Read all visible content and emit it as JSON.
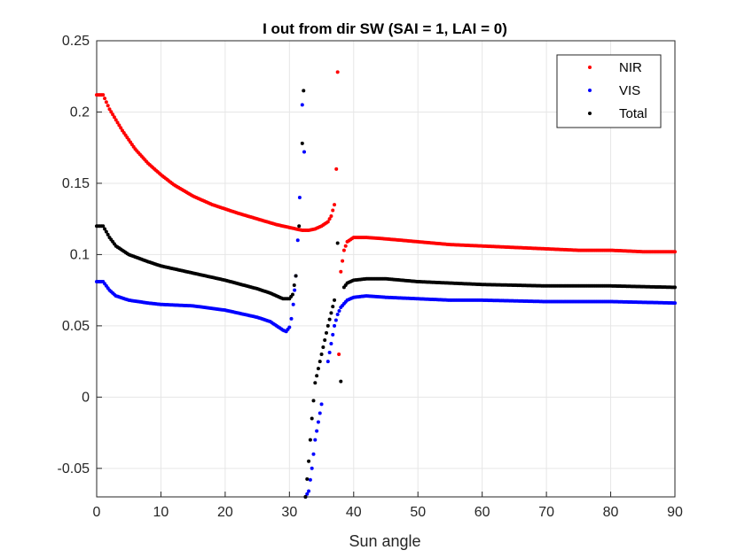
{
  "chart_data": {
    "type": "scatter",
    "title": "I out from dir SW (SAI = 1, LAI = 0)",
    "xlabel": "Sun angle",
    "ylabel": "",
    "xlim": [
      0,
      90
    ],
    "ylim": [
      -0.07,
      0.25
    ],
    "xticks": [
      "0",
      "10",
      "20",
      "30",
      "40",
      "50",
      "60",
      "70",
      "80",
      "90"
    ],
    "yticks": [
      "-0.05",
      "0",
      "0.05",
      "0.1",
      "0.15",
      "0.2",
      "0.25"
    ],
    "grid": true,
    "legend_position": "top-right",
    "series": [
      {
        "name": "NIR",
        "color": "#ff0000",
        "x": [
          0,
          1,
          2,
          4,
          6,
          8,
          10,
          12,
          15,
          18,
          20,
          22,
          25,
          28,
          30,
          31,
          32,
          33,
          34,
          35,
          36,
          36.5,
          37,
          37.3,
          37.5,
          37.7,
          38,
          38.5,
          39,
          40,
          42,
          45,
          50,
          55,
          60,
          65,
          70,
          75,
          80,
          85,
          90
        ],
        "y": [
          0.212,
          0.212,
          0.202,
          0.187,
          0.174,
          0.164,
          0.156,
          0.149,
          0.141,
          0.135,
          0.132,
          0.129,
          0.125,
          0.121,
          0.119,
          0.118,
          0.117,
          0.117,
          0.118,
          0.12,
          0.123,
          0.127,
          0.135,
          0.16,
          0.228,
          0.03,
          0.088,
          0.103,
          0.109,
          0.112,
          0.112,
          0.111,
          0.109,
          0.107,
          0.106,
          0.105,
          0.104,
          0.103,
          0.103,
          0.102,
          0.102
        ]
      },
      {
        "name": "VIS",
        "color": "#0000ff",
        "x": [
          0,
          1,
          2,
          3,
          5,
          8,
          10,
          15,
          20,
          25,
          27,
          28,
          29,
          29.5,
          30,
          30.3,
          30.6,
          31,
          31.3,
          31.6,
          32,
          32.3,
          32.5,
          33,
          33.5,
          34,
          35,
          36,
          37,
          37.5,
          38,
          39,
          40,
          42,
          45,
          50,
          55,
          60,
          70,
          80,
          90
        ],
        "y": [
          0.081,
          0.081,
          0.075,
          0.071,
          0.068,
          0.066,
          0.065,
          0.064,
          0.061,
          0.056,
          0.053,
          0.05,
          0.047,
          0.046,
          0.049,
          0.055,
          0.065,
          0.085,
          0.11,
          0.14,
          0.205,
          0.172,
          -0.07,
          -0.066,
          -0.05,
          -0.03,
          -0.005,
          0.025,
          0.05,
          0.058,
          0.063,
          0.068,
          0.07,
          0.071,
          0.07,
          0.069,
          0.068,
          0.068,
          0.067,
          0.067,
          0.066
        ]
      },
      {
        "name": "Total",
        "color": "#000000",
        "x": [
          0,
          1,
          2,
          3,
          5,
          8,
          10,
          15,
          20,
          25,
          27,
          28,
          29,
          30,
          30.5,
          31,
          31.5,
          32,
          32.2,
          32.5,
          33,
          33.5,
          34,
          35,
          36,
          37,
          37.5,
          38,
          38.5,
          39,
          40,
          42,
          45,
          50,
          55,
          60,
          70,
          80,
          90
        ],
        "y": [
          0.12,
          0.12,
          0.112,
          0.106,
          0.1,
          0.095,
          0.092,
          0.087,
          0.082,
          0.076,
          0.073,
          0.071,
          0.069,
          0.069,
          0.072,
          0.085,
          0.12,
          0.178,
          0.215,
          -0.07,
          -0.045,
          -0.015,
          0.01,
          0.03,
          0.05,
          0.068,
          0.108,
          0.011,
          0.077,
          0.08,
          0.082,
          0.083,
          0.083,
          0.081,
          0.08,
          0.079,
          0.078,
          0.078,
          0.077
        ]
      }
    ]
  }
}
